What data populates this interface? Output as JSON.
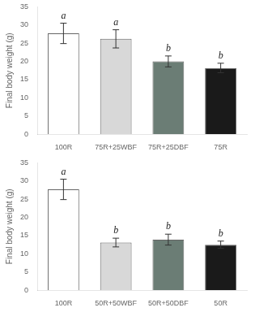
{
  "chart_data": [
    {
      "type": "bar",
      "categories": [
        "100R",
        "75R+25WBF",
        "75R+25DBF",
        "75R"
      ],
      "values": [
        27.7,
        26.2,
        20.0,
        18.2
      ],
      "errors": [
        2.8,
        2.5,
        1.5,
        1.3
      ],
      "annotations": [
        "a",
        "a",
        "b",
        "b"
      ],
      "colors": [
        "#ffffff",
        "#d8d8d8",
        "#6b7d75",
        "#1a1a1a"
      ],
      "ylabel": "Final body weight (g)",
      "ylim": [
        0,
        35
      ],
      "yticks": [
        0,
        5,
        10,
        15,
        20,
        25,
        30,
        35
      ],
      "grid": false
    },
    {
      "type": "bar",
      "categories": [
        "100R",
        "50R+50WBF",
        "50R+50DBF",
        "50R"
      ],
      "values": [
        27.7,
        13.1,
        13.9,
        12.5
      ],
      "errors": [
        2.8,
        1.2,
        1.5,
        1.0
      ],
      "annotations": [
        "a",
        "b",
        "b",
        "b"
      ],
      "colors": [
        "#ffffff",
        "#d8d8d8",
        "#6b7d75",
        "#1a1a1a"
      ],
      "ylabel": "Final body weight (g)",
      "ylim": [
        0,
        35
      ],
      "yticks": [
        0,
        5,
        10,
        15,
        20,
        25,
        30,
        35
      ],
      "grid": false
    }
  ]
}
